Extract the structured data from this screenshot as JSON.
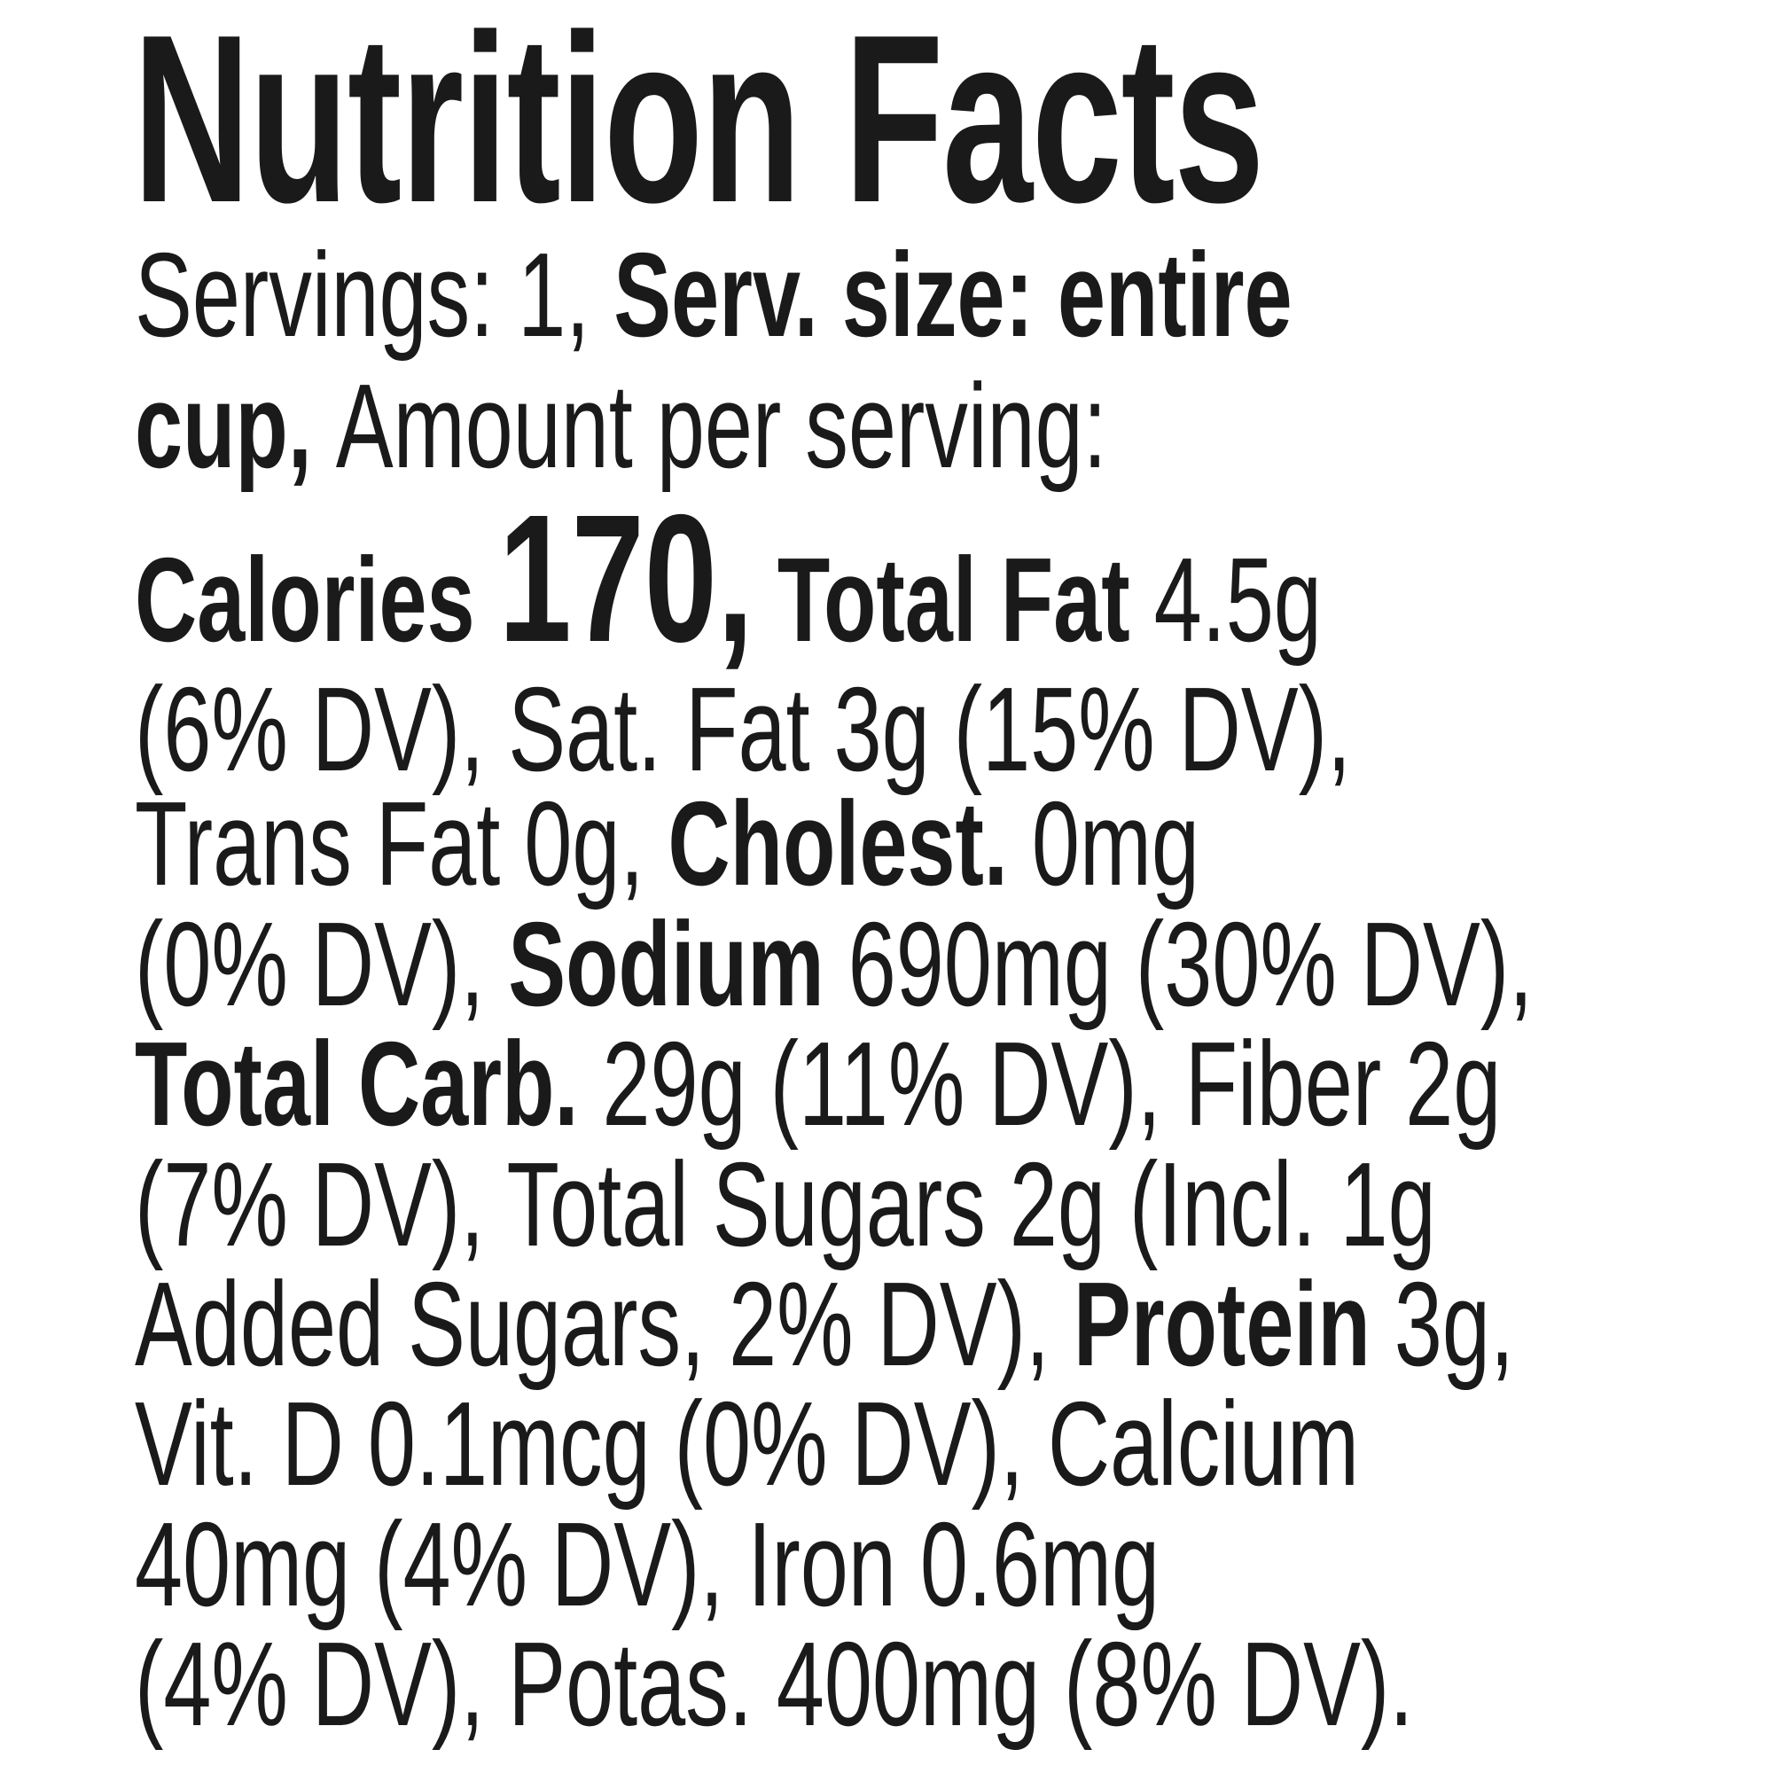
{
  "title": "Nutrition Facts",
  "lines": [
    [
      "Servings: 1, ",
      "Serv. size: entire"
    ],
    [
      "cup, ",
      "Amount per serving:"
    ],
    [
      "Calories ",
      "170,",
      " Total Fat",
      " 4.5g"
    ],
    [
      "(6% DV), Sat. Fat 3g (15% DV),"
    ],
    [
      "Trans Fat 0g, ",
      "Cholest.",
      " 0mg"
    ],
    [
      "(0% DV), ",
      "Sodium",
      " 690mg (30% DV),"
    ],
    [
      "Total Carb.",
      " 29g (11% DV), Fiber 2g"
    ],
    [
      "(7% DV), Total Sugars 2g (Incl. 1g"
    ],
    [
      "Added Sugars, 2% DV), ",
      "Protein",
      " 3g,"
    ],
    [
      "Vit. D 0.1mcg (0% DV), Calcium"
    ],
    [
      "40mg (4% DV), Iron 0.6mg"
    ],
    [
      "(4% DV), Potas. 400mg (8% DV)."
    ]
  ]
}
